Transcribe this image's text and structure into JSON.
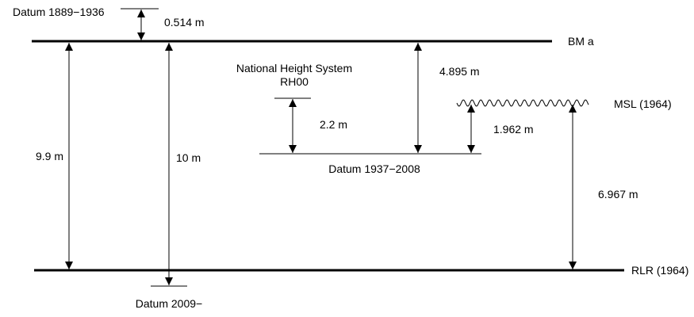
{
  "labels": {
    "datum_1889": "Datum 1889−1936",
    "offset_0514": "0.514 m",
    "bm_a": "BM a",
    "nhs_line1": "National Height System",
    "nhs_line2": "RH00",
    "offset_4895": "4.895 m",
    "msl_1964": "MSL (1964)",
    "offset_22": "2.2 m",
    "offset_1962": "1.962 m",
    "offset_99": "9.9 m",
    "offset_10": "10 m",
    "datum_1937": "Datum 1937−2008",
    "offset_6967": "6.967 m",
    "rlr_1964": "RLR (1964)",
    "datum_2009": "Datum 2009−"
  },
  "colors": {
    "line": "#000000",
    "background": "#ffffff"
  }
}
